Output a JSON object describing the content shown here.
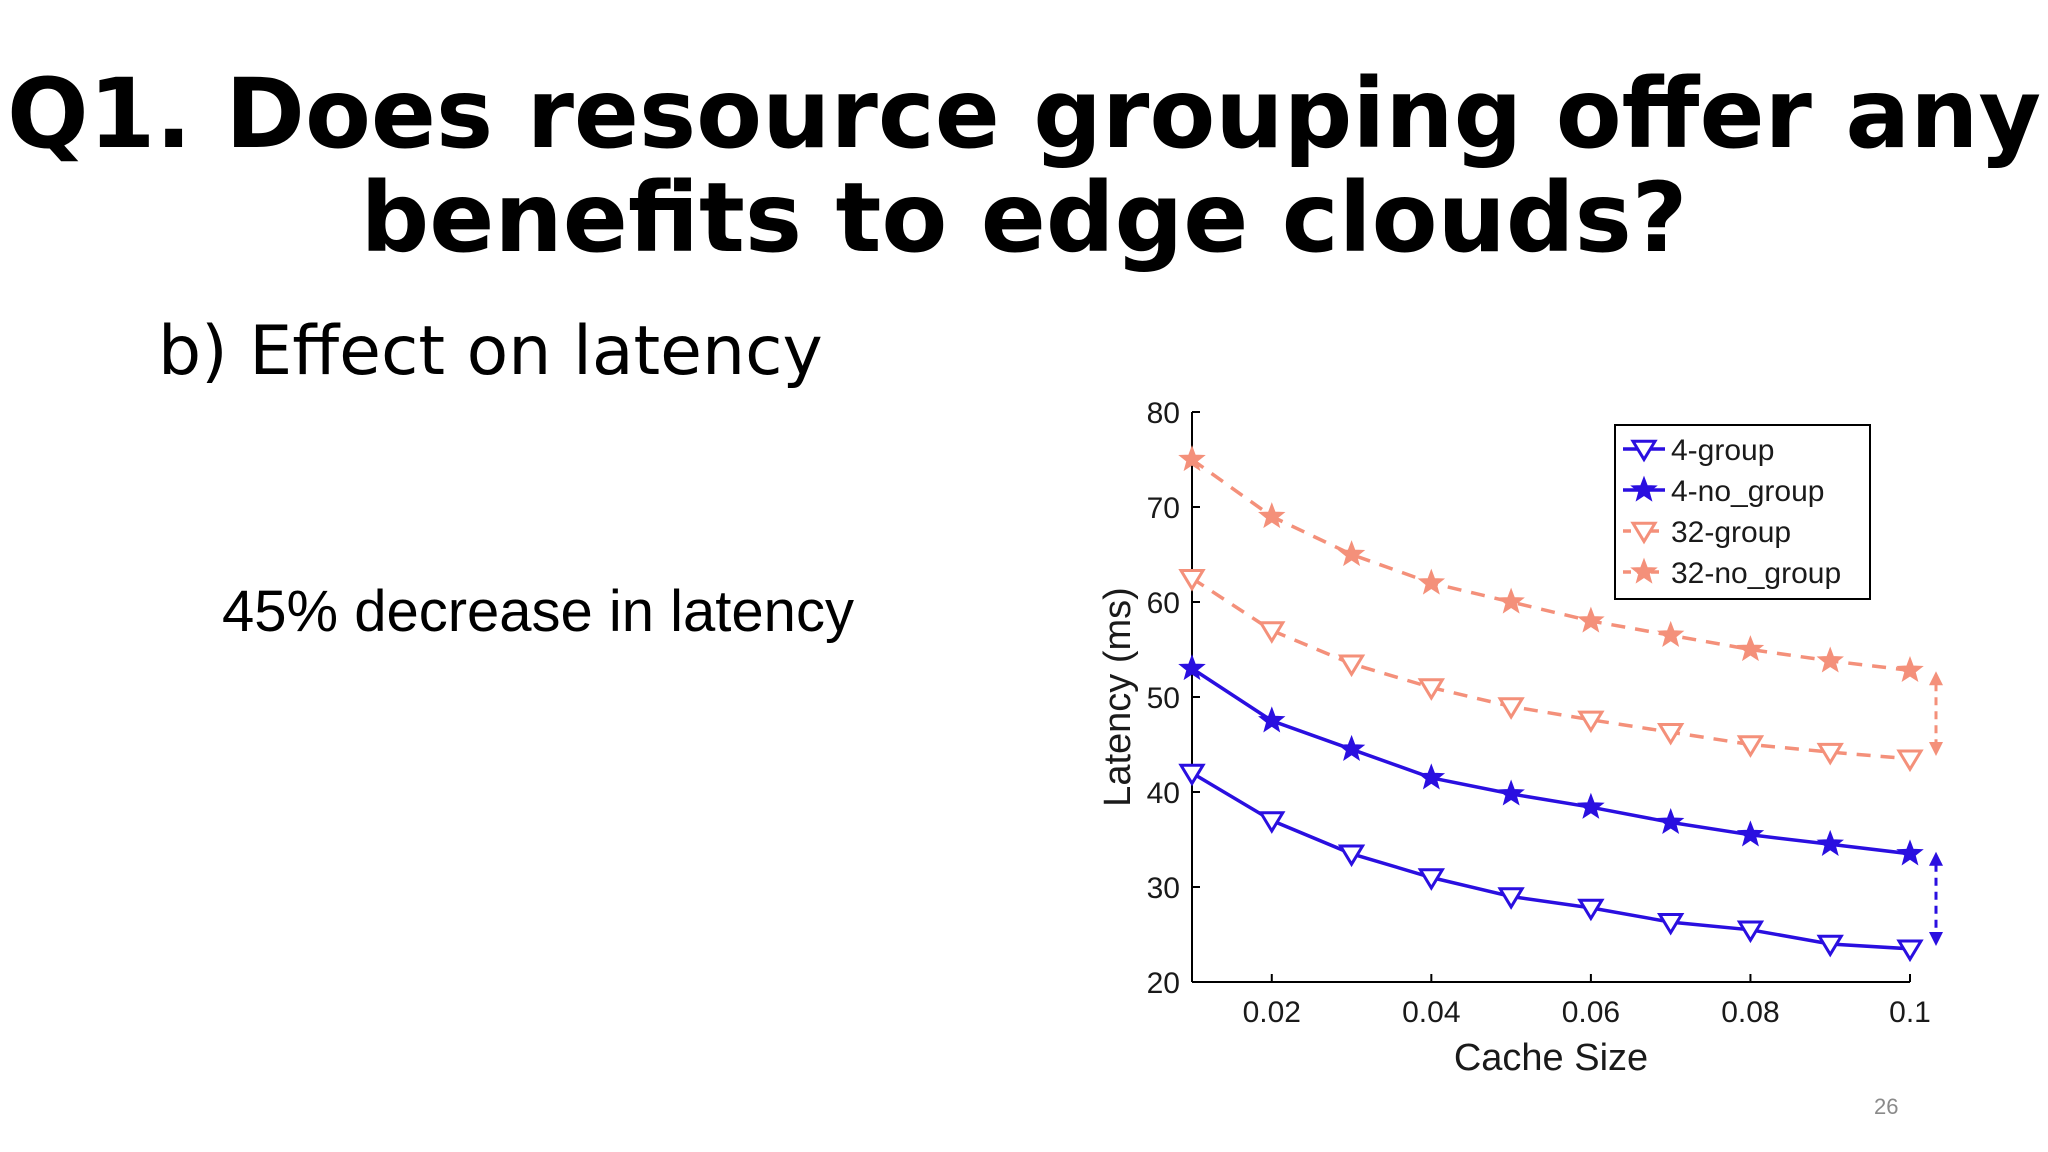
{
  "slide": {
    "title_line1": "Q1. Does resource grouping offer any",
    "title_line2": "benefits to edge clouds?",
    "subtitle": "b) Effect on latency",
    "callout": "45% decrease in latency",
    "page_number": "26"
  },
  "chart_data": {
    "type": "line",
    "title": "",
    "xlabel": "Cache Size",
    "ylabel": "Latency (ms)",
    "xlim": [
      0.01,
      0.1
    ],
    "ylim": [
      20,
      80
    ],
    "xticks": [
      0.02,
      0.04,
      0.06,
      0.08,
      0.1
    ],
    "yticks": [
      20,
      30,
      40,
      50,
      60,
      70,
      80
    ],
    "xtick_labels": [
      "0.02",
      "0.04",
      "0.06",
      "0.08",
      "0.1"
    ],
    "ytick_labels": [
      "20",
      "30",
      "40",
      "50",
      "60",
      "70",
      "80"
    ],
    "grid": false,
    "legend_position": "top-right",
    "x": [
      0.01,
      0.02,
      0.03,
      0.04,
      0.05,
      0.06,
      0.07,
      0.08,
      0.09,
      0.1
    ],
    "series": [
      {
        "name": "4-group",
        "color": "#2a0fe0",
        "dash": "solid",
        "marker": "triangle-down-open",
        "values": [
          42,
          37,
          33.5,
          31,
          29,
          27.8,
          26.3,
          25.5,
          24,
          23.5
        ]
      },
      {
        "name": "4-no_group",
        "color": "#2a0fe0",
        "dash": "solid",
        "marker": "star",
        "values": [
          53,
          47.5,
          44.5,
          41.5,
          39.8,
          38.4,
          36.8,
          35.5,
          34.5,
          33.5
        ]
      },
      {
        "name": "32-group",
        "color": "#f4907a",
        "dash": "dashed",
        "marker": "triangle-down-open",
        "values": [
          62.5,
          57,
          53.5,
          51,
          49,
          47.6,
          46.3,
          45,
          44.2,
          43.5
        ]
      },
      {
        "name": "32-no_group",
        "color": "#f4907a",
        "dash": "dashed",
        "marker": "star",
        "values": [
          75,
          69,
          65,
          62,
          60,
          58,
          56.5,
          55,
          53.8,
          52.8
        ]
      }
    ],
    "annotations": [
      {
        "type": "double-arrow",
        "x": 0.1,
        "y_from": 52.5,
        "y_to": 44,
        "color": "#f4907a"
      },
      {
        "type": "double-arrow",
        "x": 0.1,
        "y_from": 33.5,
        "y_to": 24,
        "color": "#2a0fe0"
      }
    ]
  }
}
